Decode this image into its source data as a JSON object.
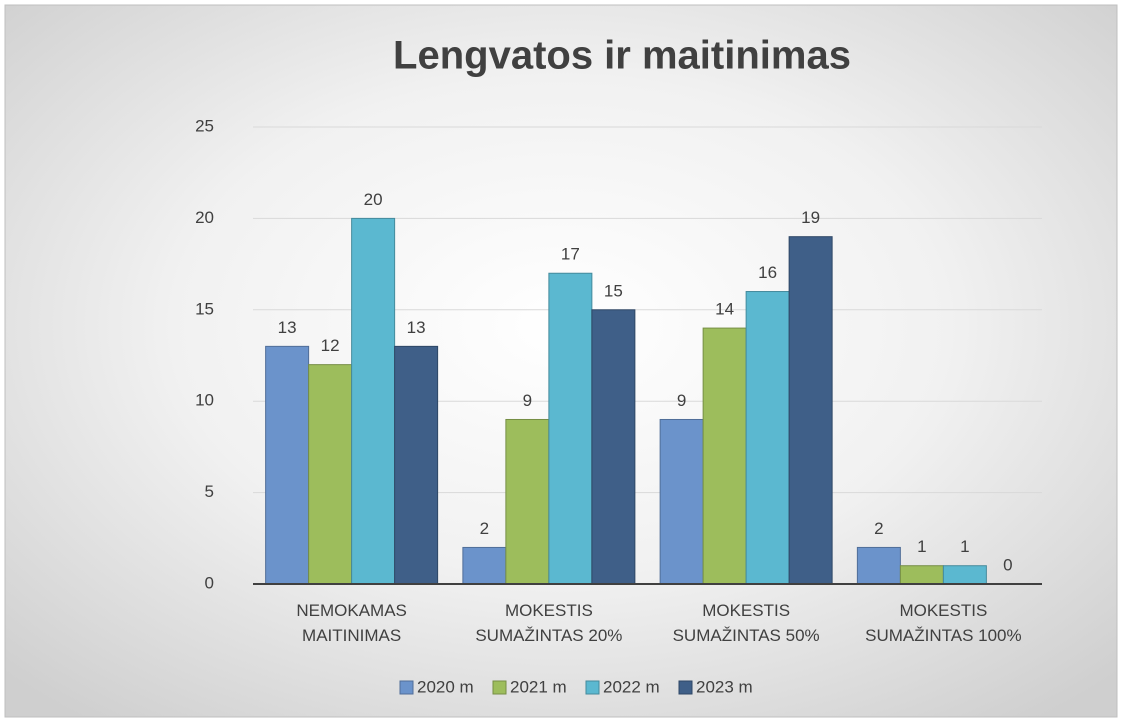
{
  "chart_data": {
    "type": "bar",
    "title": "Lengvatos ir maitinimas",
    "categories": [
      "NEMOKAMAS MAITINIMAS",
      "MOKESTIS SUMAŽINTAS 20%",
      "MOKESTIS SUMAŽINTAS 50%",
      "MOKESTIS SUMAŽINTAS 100%"
    ],
    "series": [
      {
        "name": "2020 m",
        "color": "#6b93cb",
        "values": [
          13,
          2,
          9,
          2
        ]
      },
      {
        "name": "2021 m",
        "color": "#9dbd5c",
        "values": [
          12,
          9,
          14,
          1
        ]
      },
      {
        "name": "2022 m",
        "color": "#5bb8d0",
        "values": [
          20,
          17,
          16,
          1
        ]
      },
      {
        "name": "2023 m",
        "color": "#3f5f88",
        "values": [
          13,
          15,
          19,
          0
        ]
      }
    ],
    "ylim": [
      0,
      25
    ],
    "yticks": [
      0,
      5,
      10,
      15,
      20,
      25
    ],
    "grid": true,
    "legend": "bottom"
  }
}
